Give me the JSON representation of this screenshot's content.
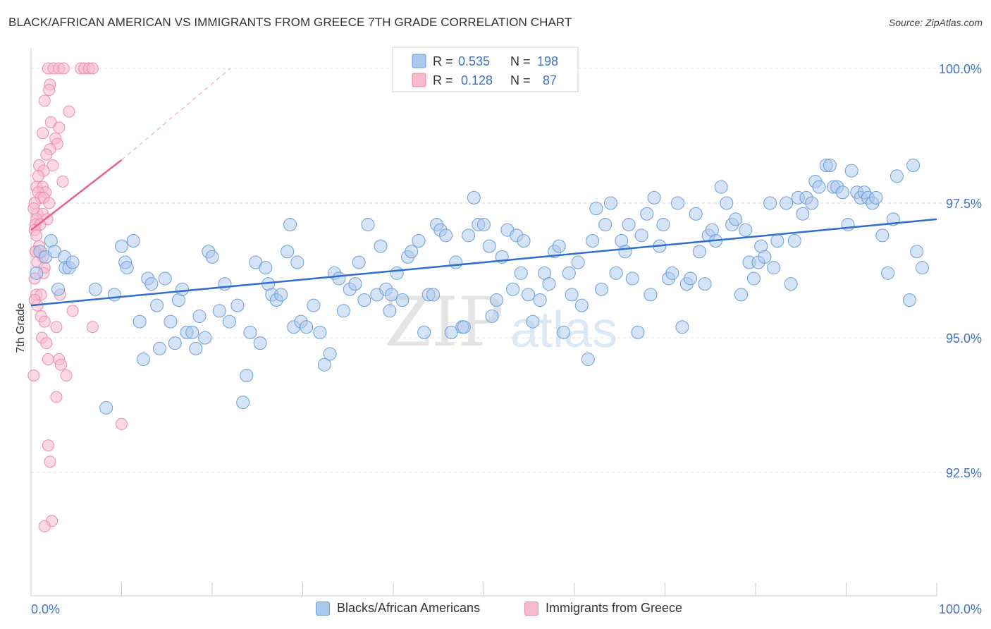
{
  "title": "BLACK/AFRICAN AMERICAN VS IMMIGRANTS FROM GREECE 7TH GRADE CORRELATION CHART",
  "source": "Source: ZipAtlas.com",
  "watermark": {
    "zip": "ZIP",
    "atlas": "atlas"
  },
  "legend_top": {
    "rows": [
      {
        "r_label": "R =",
        "r_value": "0.535",
        "n_label": "N =",
        "n_value": "198"
      },
      {
        "r_label": "R =",
        "r_value": "0.128",
        "n_label": "N =",
        "n_value": "87"
      }
    ]
  },
  "legend_bottom": {
    "series1": "Blacks/African Americans",
    "series2": "Immigrants from Greece"
  },
  "colors": {
    "blue_fill": "#a9c8ee",
    "blue_stroke": "#6c9fd9",
    "blue_line": "#2f6fcf",
    "pink_fill": "#f7b9cd",
    "pink_stroke": "#ee8cab",
    "pink_line": "#e8608a",
    "tick_label": "#3f73c8",
    "grid": "#dddddd"
  },
  "chart_data": {
    "type": "scatter",
    "title": "BLACK/AFRICAN AMERICAN VS IMMIGRANTS FROM GREECE 7TH GRADE CORRELATION CHART",
    "xlabel": "",
    "ylabel": "7th Grade",
    "xlim": [
      0,
      100
    ],
    "ylim": [
      90.1,
      100.3
    ],
    "x_tick_labels": [
      "0.0%",
      "100.0%"
    ],
    "y_ticks": [
      92.5,
      95.0,
      97.5,
      100.0
    ],
    "y_tick_labels": [
      "92.5%",
      "95.0%",
      "97.5%",
      "100.0%"
    ],
    "grid": "horizontal dashed",
    "series": [
      {
        "name": "Blacks/African Americans",
        "color": "blue",
        "trend": {
          "x": [
            0,
            100
          ],
          "y": [
            95.6,
            97.2
          ]
        },
        "points": [
          [
            0.6,
            96.2
          ],
          [
            1.0,
            96.6
          ],
          [
            1.6,
            96.5
          ],
          [
            2.2,
            96.8
          ],
          [
            2.6,
            96.6
          ],
          [
            3.0,
            95.9
          ],
          [
            3.7,
            96.5
          ],
          [
            3.8,
            96.3
          ],
          [
            4.2,
            96.3
          ],
          [
            4.6,
            96.4
          ],
          [
            8.3,
            93.7
          ],
          [
            9.2,
            95.8
          ],
          [
            10.0,
            96.7
          ],
          [
            10.4,
            96.4
          ],
          [
            10.6,
            96.3
          ],
          [
            11.3,
            96.8
          ],
          [
            12.0,
            95.3
          ],
          [
            12.4,
            94.6
          ],
          [
            12.9,
            96.1
          ],
          [
            13.3,
            96.0
          ],
          [
            13.9,
            95.6
          ],
          [
            14.2,
            94.8
          ],
          [
            14.8,
            96.1
          ],
          [
            15.4,
            95.3
          ],
          [
            15.9,
            94.9
          ],
          [
            16.3,
            95.7
          ],
          [
            16.7,
            95.9
          ],
          [
            17.2,
            95.1
          ],
          [
            17.8,
            95.1
          ],
          [
            18.2,
            94.8
          ],
          [
            18.6,
            95.4
          ],
          [
            19.2,
            95.0
          ],
          [
            19.6,
            96.6
          ],
          [
            20.0,
            96.5
          ],
          [
            20.8,
            95.5
          ],
          [
            21.4,
            96.0
          ],
          [
            21.9,
            95.3
          ],
          [
            22.8,
            95.6
          ],
          [
            23.4,
            93.8
          ],
          [
            23.8,
            94.3
          ],
          [
            24.2,
            95.1
          ],
          [
            24.8,
            96.4
          ],
          [
            25.3,
            94.9
          ],
          [
            25.9,
            96.3
          ],
          [
            26.2,
            96.0
          ],
          [
            26.6,
            95.8
          ],
          [
            27.1,
            95.7
          ],
          [
            27.6,
            95.8
          ],
          [
            28.3,
            96.6
          ],
          [
            28.6,
            97.1
          ],
          [
            29.0,
            95.2
          ],
          [
            29.4,
            96.4
          ],
          [
            29.8,
            95.3
          ],
          [
            30.4,
            95.2
          ],
          [
            31.2,
            95.6
          ],
          [
            31.9,
            95.1
          ],
          [
            32.4,
            94.5
          ],
          [
            33.0,
            94.7
          ],
          [
            33.5,
            96.2
          ],
          [
            34.0,
            96.1
          ],
          [
            34.5,
            95.5
          ],
          [
            35.2,
            95.9
          ],
          [
            35.8,
            96.0
          ],
          [
            36.2,
            96.4
          ],
          [
            36.8,
            95.7
          ],
          [
            37.2,
            97.1
          ],
          [
            38.2,
            95.8
          ],
          [
            38.6,
            96.7
          ],
          [
            39.2,
            95.9
          ],
          [
            39.6,
            95.5
          ],
          [
            39.8,
            95.8
          ],
          [
            40.4,
            96.2
          ],
          [
            41.0,
            95.7
          ],
          [
            41.6,
            96.5
          ],
          [
            42.0,
            96.6
          ],
          [
            42.8,
            96.8
          ],
          [
            43.4,
            95.1
          ],
          [
            43.9,
            95.8
          ],
          [
            44.4,
            95.8
          ],
          [
            44.8,
            97.1
          ],
          [
            45.2,
            97.0
          ],
          [
            45.8,
            96.9
          ],
          [
            46.4,
            95.1
          ],
          [
            46.9,
            96.4
          ],
          [
            47.6,
            95.2
          ],
          [
            47.8,
            95.2
          ],
          [
            48.3,
            96.9
          ],
          [
            48.9,
            97.6
          ],
          [
            49.4,
            97.1
          ],
          [
            50.0,
            97.1
          ],
          [
            50.6,
            96.7
          ],
          [
            50.9,
            95.4
          ],
          [
            51.4,
            95.7
          ],
          [
            52.0,
            96.5
          ],
          [
            52.6,
            97.0
          ],
          [
            53.2,
            95.9
          ],
          [
            53.6,
            96.9
          ],
          [
            54.1,
            96.2
          ],
          [
            54.4,
            96.8
          ],
          [
            54.9,
            95.8
          ],
          [
            55.4,
            95.3
          ],
          [
            56.2,
            95.7
          ],
          [
            56.7,
            96.2
          ],
          [
            57.2,
            96.0
          ],
          [
            57.8,
            96.6
          ],
          [
            58.3,
            96.7
          ],
          [
            58.8,
            95.1
          ],
          [
            59.4,
            96.2
          ],
          [
            59.7,
            95.8
          ],
          [
            60.4,
            96.4
          ],
          [
            60.8,
            95.6
          ],
          [
            61.5,
            94.6
          ],
          [
            62.0,
            96.8
          ],
          [
            62.4,
            97.4
          ],
          [
            63.0,
            95.9
          ],
          [
            63.4,
            97.1
          ],
          [
            64.0,
            97.5
          ],
          [
            64.6,
            96.2
          ],
          [
            65.2,
            96.8
          ],
          [
            65.6,
            96.6
          ],
          [
            66.0,
            97.1
          ],
          [
            66.4,
            96.1
          ],
          [
            67.0,
            95.1
          ],
          [
            67.4,
            96.9
          ],
          [
            68.0,
            97.3
          ],
          [
            68.4,
            95.8
          ],
          [
            68.8,
            97.6
          ],
          [
            69.4,
            96.7
          ],
          [
            69.8,
            97.1
          ],
          [
            70.4,
            96.1
          ],
          [
            70.8,
            96.2
          ],
          [
            71.4,
            97.5
          ],
          [
            71.9,
            95.2
          ],
          [
            72.4,
            96.0
          ],
          [
            72.8,
            96.1
          ],
          [
            73.4,
            97.3
          ],
          [
            73.8,
            96.6
          ],
          [
            74.4,
            96.0
          ],
          [
            74.8,
            96.9
          ],
          [
            75.2,
            97.0
          ],
          [
            75.6,
            96.8
          ],
          [
            76.2,
            97.8
          ],
          [
            76.8,
            97.5
          ],
          [
            77.4,
            97.1
          ],
          [
            77.8,
            97.2
          ],
          [
            78.4,
            95.8
          ],
          [
            78.9,
            97.0
          ],
          [
            79.3,
            96.4
          ],
          [
            79.8,
            96.1
          ],
          [
            80.3,
            96.4
          ],
          [
            80.6,
            96.7
          ],
          [
            81.0,
            96.5
          ],
          [
            82.0,
            96.3
          ],
          [
            81.6,
            97.5
          ],
          [
            82.4,
            96.8
          ],
          [
            83.4,
            97.5
          ],
          [
            83.9,
            96.0
          ],
          [
            84.3,
            96.8
          ],
          [
            84.7,
            97.6
          ],
          [
            85.2,
            97.3
          ],
          [
            85.6,
            97.6
          ],
          [
            86.2,
            97.5
          ],
          [
            86.6,
            97.9
          ],
          [
            87.0,
            97.8
          ],
          [
            87.8,
            98.2
          ],
          [
            88.2,
            98.2
          ],
          [
            88.6,
            97.8
          ],
          [
            89.0,
            97.8
          ],
          [
            89.6,
            97.7
          ],
          [
            90.2,
            97.1
          ],
          [
            90.6,
            98.1
          ],
          [
            91.2,
            97.7
          ],
          [
            91.6,
            97.6
          ],
          [
            92.0,
            97.7
          ],
          [
            92.4,
            97.6
          ],
          [
            92.9,
            97.5
          ],
          [
            93.3,
            97.6
          ],
          [
            94.0,
            96.9
          ],
          [
            94.6,
            96.2
          ],
          [
            95.2,
            97.2
          ],
          [
            95.6,
            98.0
          ],
          [
            97.0,
            95.7
          ],
          [
            97.4,
            98.2
          ],
          [
            97.8,
            96.6
          ],
          [
            98.4,
            96.3
          ],
          [
            7.1,
            95.9
          ]
        ]
      },
      {
        "name": "Immigrants from Greece",
        "color": "pink",
        "trend": {
          "x": [
            0,
            10
          ],
          "y": [
            97.0,
            98.3
          ],
          "dashed_to": {
            "x": 22,
            "y": 100.0
          }
        },
        "points": [
          [
            1.9,
            100.0
          ],
          [
            2.5,
            100.0
          ],
          [
            3.1,
            100.0
          ],
          [
            3.6,
            100.0
          ],
          [
            5.5,
            100.0
          ],
          [
            5.9,
            100.0
          ],
          [
            6.4,
            100.0
          ],
          [
            6.8,
            100.0
          ],
          [
            2.1,
            99.7
          ],
          [
            2.0,
            99.6
          ],
          [
            1.5,
            99.4
          ],
          [
            4.2,
            99.2
          ],
          [
            2.2,
            99.0
          ],
          [
            3.1,
            98.9
          ],
          [
            1.3,
            98.8
          ],
          [
            2.7,
            98.7
          ],
          [
            2.9,
            98.6
          ],
          [
            2.1,
            98.5
          ],
          [
            1.7,
            98.4
          ],
          [
            2.4,
            98.2
          ],
          [
            0.9,
            98.2
          ],
          [
            1.4,
            98.1
          ],
          [
            0.8,
            98.0
          ],
          [
            3.5,
            97.9
          ],
          [
            0.6,
            97.8
          ],
          [
            1.3,
            97.8
          ],
          [
            1.6,
            97.7
          ],
          [
            0.8,
            97.7
          ],
          [
            1.1,
            97.6
          ],
          [
            1.4,
            97.6
          ],
          [
            0.4,
            97.5
          ],
          [
            2.0,
            97.5
          ],
          [
            0.7,
            97.3
          ],
          [
            1.3,
            97.3
          ],
          [
            0.6,
            97.2
          ],
          [
            1.8,
            97.2
          ],
          [
            0.5,
            97.1
          ],
          [
            1.0,
            97.1
          ],
          [
            0.4,
            97.0
          ],
          [
            0.6,
            96.9
          ],
          [
            0.9,
            96.7
          ],
          [
            0.5,
            96.6
          ],
          [
            1.3,
            96.5
          ],
          [
            0.7,
            96.4
          ],
          [
            1.5,
            96.3
          ],
          [
            1.4,
            96.2
          ],
          [
            0.4,
            96.1
          ],
          [
            0.6,
            95.8
          ],
          [
            1.1,
            95.8
          ],
          [
            3.2,
            95.8
          ],
          [
            0.7,
            95.6
          ],
          [
            4.6,
            95.5
          ],
          [
            1.1,
            95.4
          ],
          [
            1.5,
            95.3
          ],
          [
            2.8,
            95.2
          ],
          [
            6.8,
            95.2
          ],
          [
            1.2,
            95.0
          ],
          [
            1.7,
            94.9
          ],
          [
            1.9,
            94.6
          ],
          [
            3.1,
            94.6
          ],
          [
            3.3,
            94.5
          ],
          [
            3.9,
            94.3
          ],
          [
            0.3,
            94.3
          ],
          [
            2.8,
            93.9
          ],
          [
            10.0,
            93.4
          ],
          [
            1.9,
            93.0
          ],
          [
            2.1,
            92.7
          ],
          [
            2.3,
            91.6
          ],
          [
            1.5,
            91.5
          ],
          [
            0.4,
            95.7
          ],
          [
            0.5,
            96.6
          ],
          [
            0.3,
            97.4
          ]
        ]
      }
    ]
  }
}
